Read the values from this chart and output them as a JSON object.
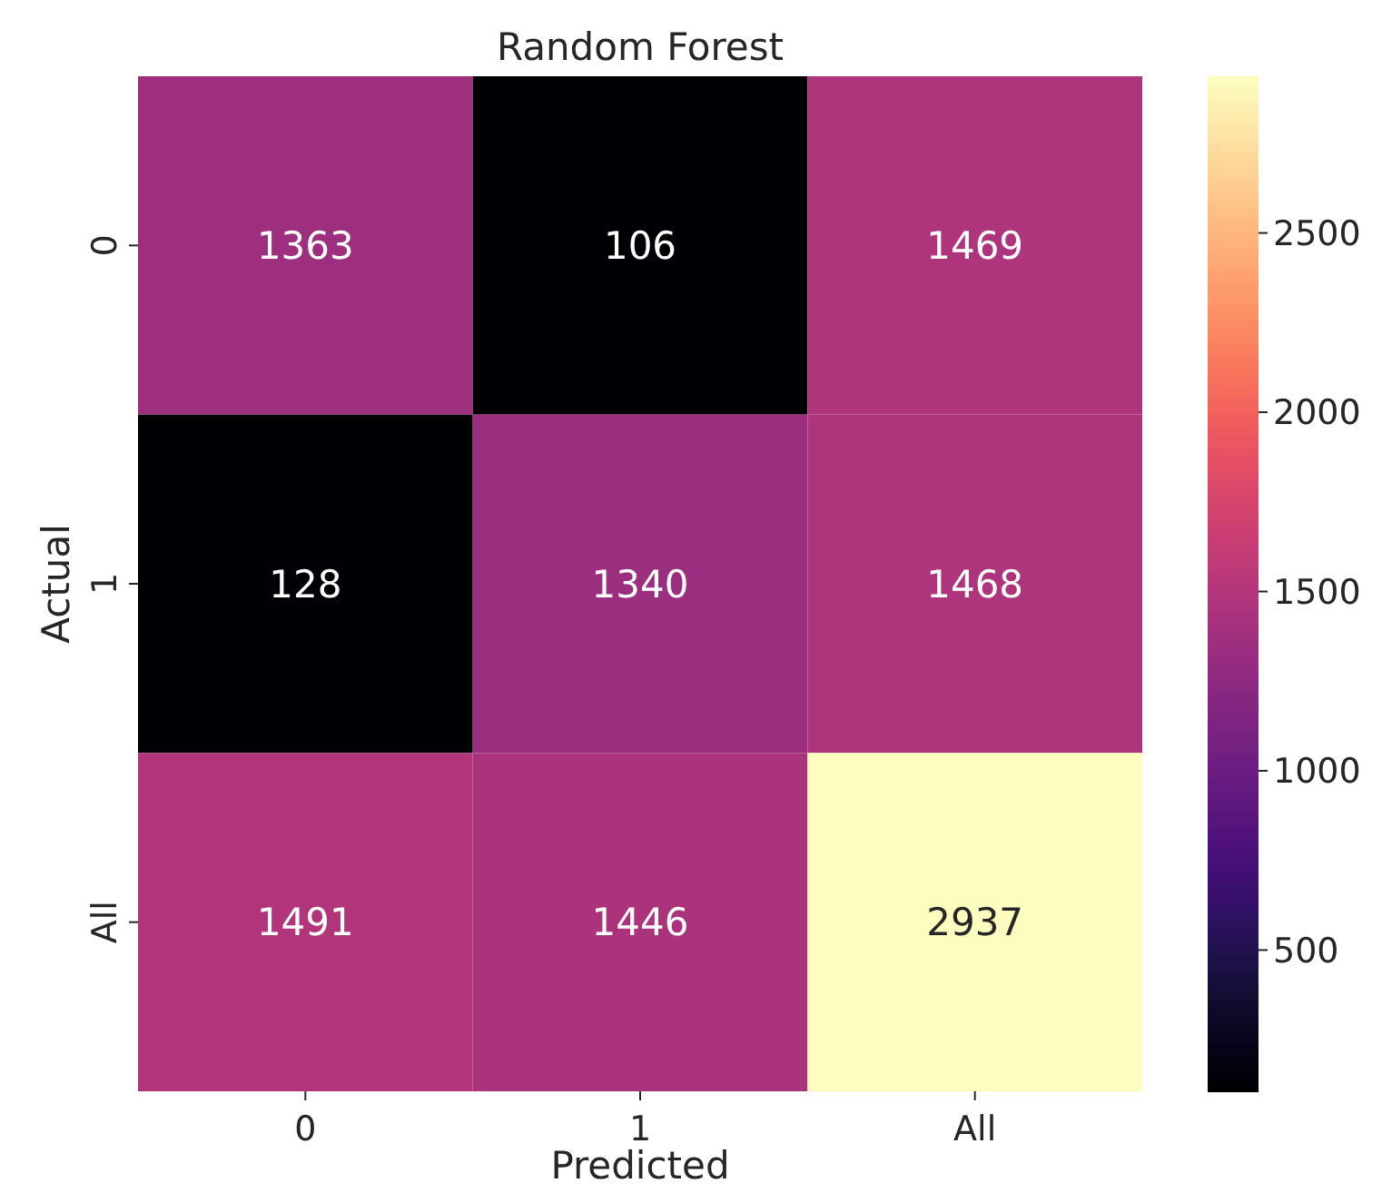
{
  "chart_data": {
    "type": "heatmap",
    "title": "Random Forest",
    "xlabel": "Predicted",
    "ylabel": "Actual",
    "categories": [
      "0",
      "1",
      "All"
    ],
    "y_categories": [
      "0",
      "1",
      "All"
    ],
    "cells": [
      [
        1363,
        106,
        1469
      ],
      [
        128,
        1340,
        1468
      ],
      [
        1491,
        1446,
        2937
      ]
    ],
    "clim": [
      106,
      2937
    ],
    "cticks": [
      500,
      1000,
      1500,
      2000,
      2500
    ],
    "data_labels": true
  }
}
